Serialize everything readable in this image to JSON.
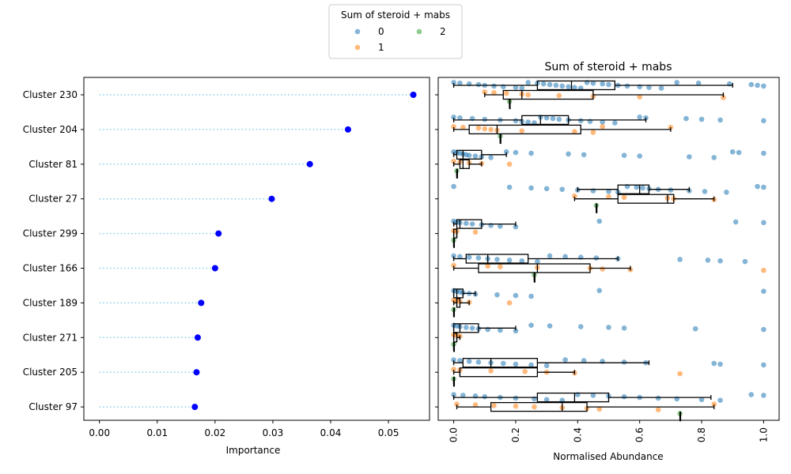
{
  "chart_data": [
    {
      "type": "scatter",
      "subtype": "lollipop",
      "title": "",
      "xlabel": "Importance",
      "ylabel": "",
      "xlim": [
        -0.0027,
        0.0571
      ],
      "x_ticks": [
        "0.00",
        "0.01",
        "0.02",
        "0.03",
        "0.04",
        "0.05"
      ],
      "x_tick_values": [
        0.0,
        0.01,
        0.02,
        0.03,
        0.04,
        0.05
      ],
      "categories": [
        "Cluster 230",
        "Cluster 204",
        "Cluster 81",
        "Cluster 27",
        "Cluster 299",
        "Cluster 166",
        "Cluster 189",
        "Cluster 271",
        "Cluster 205",
        "Cluster 97"
      ],
      "values": [
        0.0543,
        0.043,
        0.0364,
        0.0298,
        0.0206,
        0.02,
        0.0176,
        0.017,
        0.0168,
        0.0165
      ],
      "marker_color": "#0000ff",
      "stem_color": "#87ceeb",
      "grid": false
    },
    {
      "type": "box",
      "title": "Sum of steroid + mabs",
      "xlabel": "Normalised Abundance",
      "ylabel": "",
      "xlim": [
        -0.05,
        1.05
      ],
      "x_ticks": [
        "0.0",
        "0.2",
        "0.4",
        "0.6",
        "0.8",
        "1.0"
      ],
      "x_tick_values": [
        0.0,
        0.2,
        0.4,
        0.6,
        0.8,
        1.0
      ],
      "categories": [
        "Cluster 230",
        "Cluster 204",
        "Cluster 81",
        "Cluster 27",
        "Cluster 299",
        "Cluster 166",
        "Cluster 189",
        "Cluster 271",
        "Cluster 205",
        "Cluster 97"
      ],
      "legend": {
        "title": "Sum of steroid + mabs",
        "position": "top-center",
        "entries": [
          {
            "label": "0",
            "color": "#1f77b4"
          },
          {
            "label": "1",
            "color": "#ff7f0e"
          },
          {
            "label": "2",
            "color": "#2ca02c"
          }
        ]
      },
      "series": [
        {
          "name": "0",
          "color": "#1f77b4",
          "boxes": [
            {
              "q1": 0.27,
              "median": 0.38,
              "q3": 0.52,
              "whisker_low": 0.0,
              "whisker_high": 0.9
            },
            {
              "q1": 0.22,
              "median": 0.28,
              "q3": 0.37,
              "whisker_low": 0.0,
              "whisker_high": 0.62
            },
            {
              "q1": 0.01,
              "median": 0.03,
              "q3": 0.09,
              "whisker_low": 0.0,
              "whisker_high": 0.17
            },
            {
              "q1": 0.53,
              "median": 0.6,
              "q3": 0.63,
              "whisker_low": 0.4,
              "whisker_high": 0.76
            },
            {
              "q1": 0.01,
              "median": 0.02,
              "q3": 0.09,
              "whisker_low": 0.0,
              "whisker_high": 0.2
            },
            {
              "q1": 0.04,
              "median": 0.11,
              "q3": 0.24,
              "whisker_low": 0.0,
              "whisker_high": 0.53
            },
            {
              "q1": 0.0,
              "median": 0.01,
              "q3": 0.03,
              "whisker_low": 0.0,
              "whisker_high": 0.07
            },
            {
              "q1": 0.0,
              "median": 0.02,
              "q3": 0.08,
              "whisker_low": 0.0,
              "whisker_high": 0.2
            },
            {
              "q1": 0.03,
              "median": 0.12,
              "q3": 0.27,
              "whisker_low": 0.0,
              "whisker_high": 0.63
            },
            {
              "q1": 0.27,
              "median": 0.39,
              "q3": 0.5,
              "whisker_low": 0.0,
              "whisker_high": 0.83
            }
          ]
        },
        {
          "name": "1",
          "color": "#ff7f0e",
          "boxes": [
            {
              "q1": 0.16,
              "median": 0.22,
              "q3": 0.45,
              "whisker_low": 0.1,
              "whisker_high": 0.87
            },
            {
              "q1": 0.05,
              "median": 0.14,
              "q3": 0.41,
              "whisker_low": 0.0,
              "whisker_high": 0.7
            },
            {
              "q1": 0.02,
              "median": 0.03,
              "q3": 0.05,
              "whisker_low": 0.0,
              "whisker_high": 0.09
            },
            {
              "q1": 0.53,
              "median": 0.69,
              "q3": 0.71,
              "whisker_low": 0.39,
              "whisker_high": 0.84
            },
            {
              "q1": 0.0,
              "median": 0.01,
              "q3": 0.01,
              "whisker_low": 0.0,
              "whisker_high": 0.01
            },
            {
              "q1": 0.08,
              "median": 0.27,
              "q3": 0.44,
              "whisker_low": 0.0,
              "whisker_high": 0.57
            },
            {
              "q1": 0.01,
              "median": 0.01,
              "q3": 0.02,
              "whisker_low": 0.0,
              "whisker_high": 0.05
            },
            {
              "q1": 0.0,
              "median": 0.01,
              "q3": 0.01,
              "whisker_low": 0.0,
              "whisker_high": 0.02
            },
            {
              "q1": 0.02,
              "median": 0.02,
              "q3": 0.27,
              "whisker_low": 0.0,
              "whisker_high": 0.39
            },
            {
              "q1": 0.12,
              "median": 0.35,
              "q3": 0.43,
              "whisker_low": 0.01,
              "whisker_high": 0.84
            }
          ]
        },
        {
          "name": "2",
          "color": "#2ca02c",
          "boxes": [
            {
              "q1": 0.18,
              "median": 0.18,
              "q3": 0.18,
              "whisker_low": 0.18,
              "whisker_high": 0.18
            },
            {
              "q1": 0.15,
              "median": 0.15,
              "q3": 0.15,
              "whisker_low": 0.15,
              "whisker_high": 0.15
            },
            {
              "q1": 0.01,
              "median": 0.01,
              "q3": 0.01,
              "whisker_low": 0.01,
              "whisker_high": 0.01
            },
            {
              "q1": 0.46,
              "median": 0.46,
              "q3": 0.46,
              "whisker_low": 0.46,
              "whisker_high": 0.46
            },
            {
              "q1": 0.0,
              "median": 0.0,
              "q3": 0.0,
              "whisker_low": 0.0,
              "whisker_high": 0.0
            },
            {
              "q1": 0.26,
              "median": 0.26,
              "q3": 0.26,
              "whisker_low": 0.26,
              "whisker_high": 0.26
            },
            {
              "q1": 0.0,
              "median": 0.0,
              "q3": 0.0,
              "whisker_low": 0.0,
              "whisker_high": 0.0
            },
            {
              "q1": 0.0,
              "median": 0.0,
              "q3": 0.0,
              "whisker_low": 0.0,
              "whisker_high": 0.0
            },
            {
              "q1": 0.0,
              "median": 0.0,
              "q3": 0.0,
              "whisker_low": 0.0,
              "whisker_high": 0.0
            },
            {
              "q1": 0.73,
              "median": 0.73,
              "q3": 0.73,
              "whisker_low": 0.73,
              "whisker_high": 0.73
            }
          ]
        }
      ],
      "points": [
        [
          [
            0.0,
            0.02,
            0.05,
            0.08,
            0.1,
            0.13,
            0.16,
            0.2,
            0.22,
            0.24,
            0.27,
            0.29,
            0.31,
            0.33,
            0.35,
            0.37,
            0.39,
            0.41,
            0.43,
            0.45,
            0.48,
            0.5,
            0.53,
            0.56,
            0.6,
            0.63,
            0.67,
            0.72,
            0.79,
            0.89,
            0.96,
            0.98,
            1.0
          ],
          [
            0.1,
            0.13,
            0.17,
            0.22,
            0.24,
            0.34,
            0.45,
            0.6,
            0.87
          ],
          [
            0.18
          ]
        ],
        [
          [
            0.0,
            0.02,
            0.06,
            0.1,
            0.15,
            0.2,
            0.22,
            0.24,
            0.26,
            0.28,
            0.3,
            0.32,
            0.34,
            0.37,
            0.41,
            0.44,
            0.48,
            0.52,
            0.6,
            0.62,
            0.75,
            0.8,
            0.86,
            1.0
          ],
          [
            0.0,
            0.03,
            0.08,
            0.1,
            0.12,
            0.14,
            0.22,
            0.39,
            0.45,
            0.48,
            0.7
          ],
          [
            0.15
          ]
        ],
        [
          [
            0.0,
            0.01,
            0.02,
            0.03,
            0.04,
            0.05,
            0.07,
            0.09,
            0.12,
            0.17,
            0.2,
            0.25,
            0.37,
            0.42,
            0.55,
            0.6,
            0.76,
            0.84,
            0.9,
            0.92,
            1.0
          ],
          [
            0.0,
            0.02,
            0.05,
            0.09,
            0.18
          ],
          [
            0.01
          ]
        ],
        [
          [
            0.0,
            0.18,
            0.25,
            0.3,
            0.35,
            0.4,
            0.45,
            0.5,
            0.53,
            0.56,
            0.59,
            0.61,
            0.63,
            0.66,
            0.7,
            0.76,
            0.81,
            0.88,
            0.98,
            1.0
          ],
          [
            0.39,
            0.5,
            0.55,
            0.69,
            0.71,
            0.84
          ],
          [
            0.46
          ]
        ],
        [
          [
            0.0,
            0.01,
            0.02,
            0.04,
            0.06,
            0.09,
            0.12,
            0.15,
            0.2,
            0.47,
            0.91,
            1.0
          ],
          [
            0.0,
            0.01,
            0.07
          ],
          [
            0.0
          ]
        ],
        [
          [
            0.0,
            0.02,
            0.05,
            0.08,
            0.11,
            0.14,
            0.18,
            0.22,
            0.27,
            0.31,
            0.36,
            0.41,
            0.46,
            0.53,
            0.73,
            0.82,
            0.86,
            0.94
          ],
          [
            0.0,
            0.11,
            0.15,
            0.27,
            0.44,
            0.48,
            0.57,
            1.0
          ],
          [
            0.26
          ]
        ],
        [
          [
            0.0,
            0.01,
            0.02,
            0.03,
            0.05,
            0.07,
            0.14,
            0.2,
            0.25,
            0.47,
            1.0
          ],
          [
            0.0,
            0.01,
            0.02,
            0.05,
            0.18
          ],
          [
            0.0
          ]
        ],
        [
          [
            0.0,
            0.01,
            0.02,
            0.04,
            0.06,
            0.08,
            0.11,
            0.15,
            0.2,
            0.25,
            0.31,
            0.41,
            0.5,
            0.55,
            0.78,
            1.0
          ],
          [
            0.0,
            0.01,
            0.02
          ],
          [
            0.0
          ]
        ],
        [
          [
            0.0,
            0.02,
            0.05,
            0.08,
            0.12,
            0.16,
            0.2,
            0.25,
            0.3,
            0.36,
            0.42,
            0.48,
            0.55,
            0.62,
            0.84,
            0.86,
            1.0
          ],
          [
            0.0,
            0.02,
            0.12,
            0.23,
            0.3,
            0.39,
            0.73
          ],
          [
            0.0
          ]
        ],
        [
          [
            0.0,
            0.03,
            0.07,
            0.1,
            0.15,
            0.2,
            0.26,
            0.3,
            0.35,
            0.4,
            0.45,
            0.5,
            0.55,
            0.6,
            0.66,
            0.72,
            0.8,
            0.86,
            0.96,
            1.0
          ],
          [
            0.01,
            0.07,
            0.13,
            0.2,
            0.26,
            0.35,
            0.43,
            0.47,
            0.66,
            0.84
          ],
          [
            0.73
          ]
        ]
      ]
    }
  ]
}
